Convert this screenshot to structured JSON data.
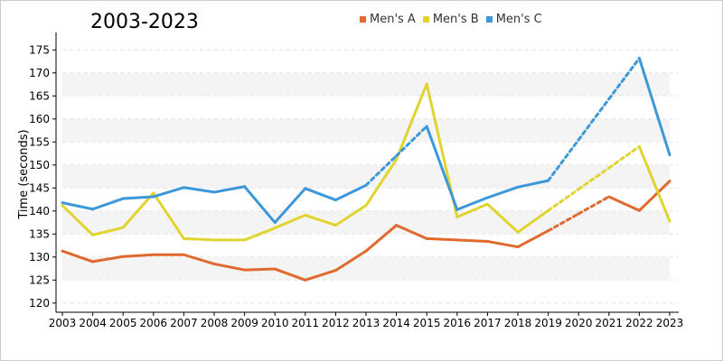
{
  "chart_data": {
    "type": "line",
    "title": "2003-2023",
    "xlabel": "",
    "ylabel": "Time (seconds)",
    "ylim": [
      118,
      178
    ],
    "yticks": [
      120,
      125,
      130,
      135,
      140,
      145,
      150,
      155,
      160,
      165,
      170,
      175
    ],
    "categories": [
      "2003",
      "2004",
      "2005",
      "2006",
      "2007",
      "2008",
      "2009",
      "2010",
      "2011",
      "2012",
      "2013",
      "2014",
      "2015",
      "2016",
      "2017",
      "2018",
      "2019",
      "2020",
      "2021",
      "2022",
      "2023"
    ],
    "grid": "alternating horizontal bands",
    "legend_position": "top-center",
    "series": [
      {
        "name": "Men's A",
        "color": "#e06a2e",
        "values": [
          131.3,
          129.0,
          130.1,
          130.5,
          130.5,
          128.5,
          127.2,
          127.4,
          125.0,
          127.1,
          131.3,
          136.9,
          134.0,
          133.7,
          133.4,
          132.2,
          135.7,
          null,
          143.1,
          140.1,
          146.5
        ],
        "dashed_segments": [
          [
            16,
            18
          ]
        ]
      },
      {
        "name": "Men's B",
        "color": "#e0d431",
        "values": [
          141.2,
          134.8,
          136.4,
          143.9,
          134.0,
          133.7,
          133.7,
          136.3,
          139.1,
          136.9,
          141.2,
          151.2,
          167.6,
          138.7,
          141.5,
          135.4,
          140.1,
          null,
          null,
          154.0,
          137.8
        ],
        "dashed_segments": [
          [
            16,
            19
          ]
        ]
      },
      {
        "name": "Men's C",
        "color": "#3c98d8",
        "values": [
          141.8,
          140.4,
          142.7,
          143.1,
          145.1,
          144.1,
          145.3,
          137.5,
          144.9,
          142.4,
          145.6,
          null,
          158.4,
          140.3,
          142.9,
          145.2,
          146.6,
          null,
          null,
          173.2,
          152.2
        ],
        "dashed_segments": [
          [
            10,
            12
          ],
          [
            16,
            19
          ]
        ]
      }
    ]
  }
}
